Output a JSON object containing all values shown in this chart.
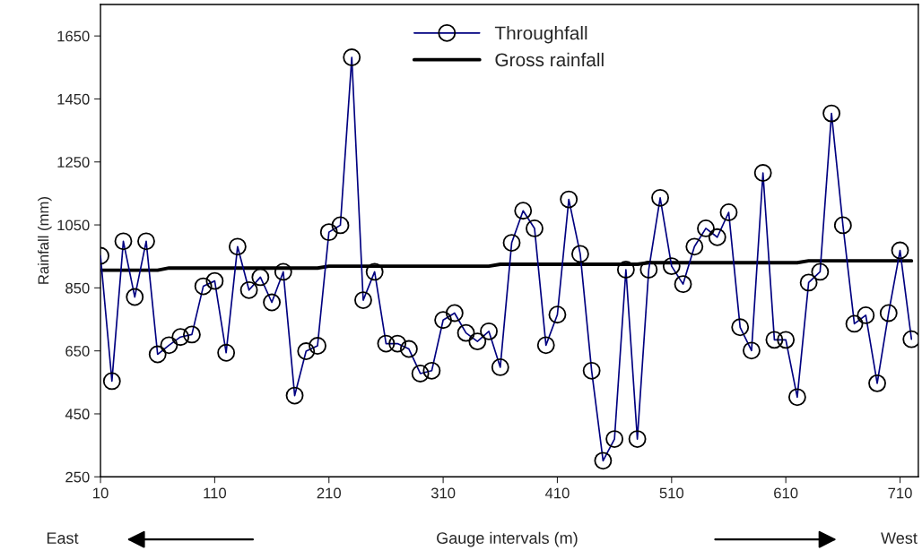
{
  "chart_data": {
    "type": "line",
    "xlabel": "Gauge intervals (m)",
    "ylabel": "Rainfall (mm)",
    "x": [
      10,
      20,
      30,
      40,
      50,
      60,
      70,
      80,
      90,
      100,
      110,
      120,
      130,
      140,
      150,
      160,
      170,
      180,
      190,
      200,
      210,
      220,
      230,
      240,
      250,
      260,
      270,
      280,
      290,
      300,
      310,
      320,
      330,
      340,
      350,
      360,
      370,
      380,
      390,
      400,
      410,
      420,
      430,
      440,
      450,
      460,
      470,
      480,
      490,
      500,
      510,
      520,
      530,
      540,
      550,
      560,
      570,
      580,
      590,
      600,
      610,
      620,
      630,
      640,
      650,
      660,
      670,
      680,
      690,
      700,
      710,
      720
    ],
    "series": [
      {
        "name": "Throughfall",
        "color": "#000080",
        "marker": "circle",
        "values": [
          952,
          554,
          998,
          821,
          998,
          639,
          668,
          694,
          702,
          855,
          872,
          644,
          981,
          843,
          884,
          804,
          901,
          508,
          649,
          666,
          1027,
          1049,
          1582,
          811,
          901,
          673,
          673,
          656,
          578,
          587,
          748,
          770,
          707,
          680,
          712,
          598,
          993,
          1095,
          1039,
          668,
          765,
          1131,
          958,
          587,
          301,
          370,
          908,
          370,
          908,
          1136,
          919,
          862,
          981,
          1039,
          1011,
          1090,
          725,
          651,
          1215,
          685,
          685,
          503,
          867,
          901,
          1404,
          1049,
          736,
          763,
          547,
          770,
          969,
          687
        ]
      },
      {
        "name": "Gross rainfall",
        "color": "#000000",
        "marker": "none",
        "x": [
          10,
          60,
          70,
          200,
          210,
          350,
          360,
          480,
          490,
          620,
          630,
          720
        ],
        "values": [
          906,
          906,
          913,
          913,
          919,
          919,
          925,
          925,
          930,
          930,
          936,
          936
        ]
      }
    ],
    "xlim": [
      10,
      726
    ],
    "xticks": [
      10,
      110,
      210,
      310,
      410,
      510,
      610,
      710
    ],
    "ylim": [
      250,
      1750
    ],
    "yticks": [
      250,
      450,
      650,
      850,
      1050,
      1250,
      1450,
      1650
    ],
    "grid": false,
    "legend": "top",
    "annotations": [
      "East",
      "West"
    ]
  }
}
